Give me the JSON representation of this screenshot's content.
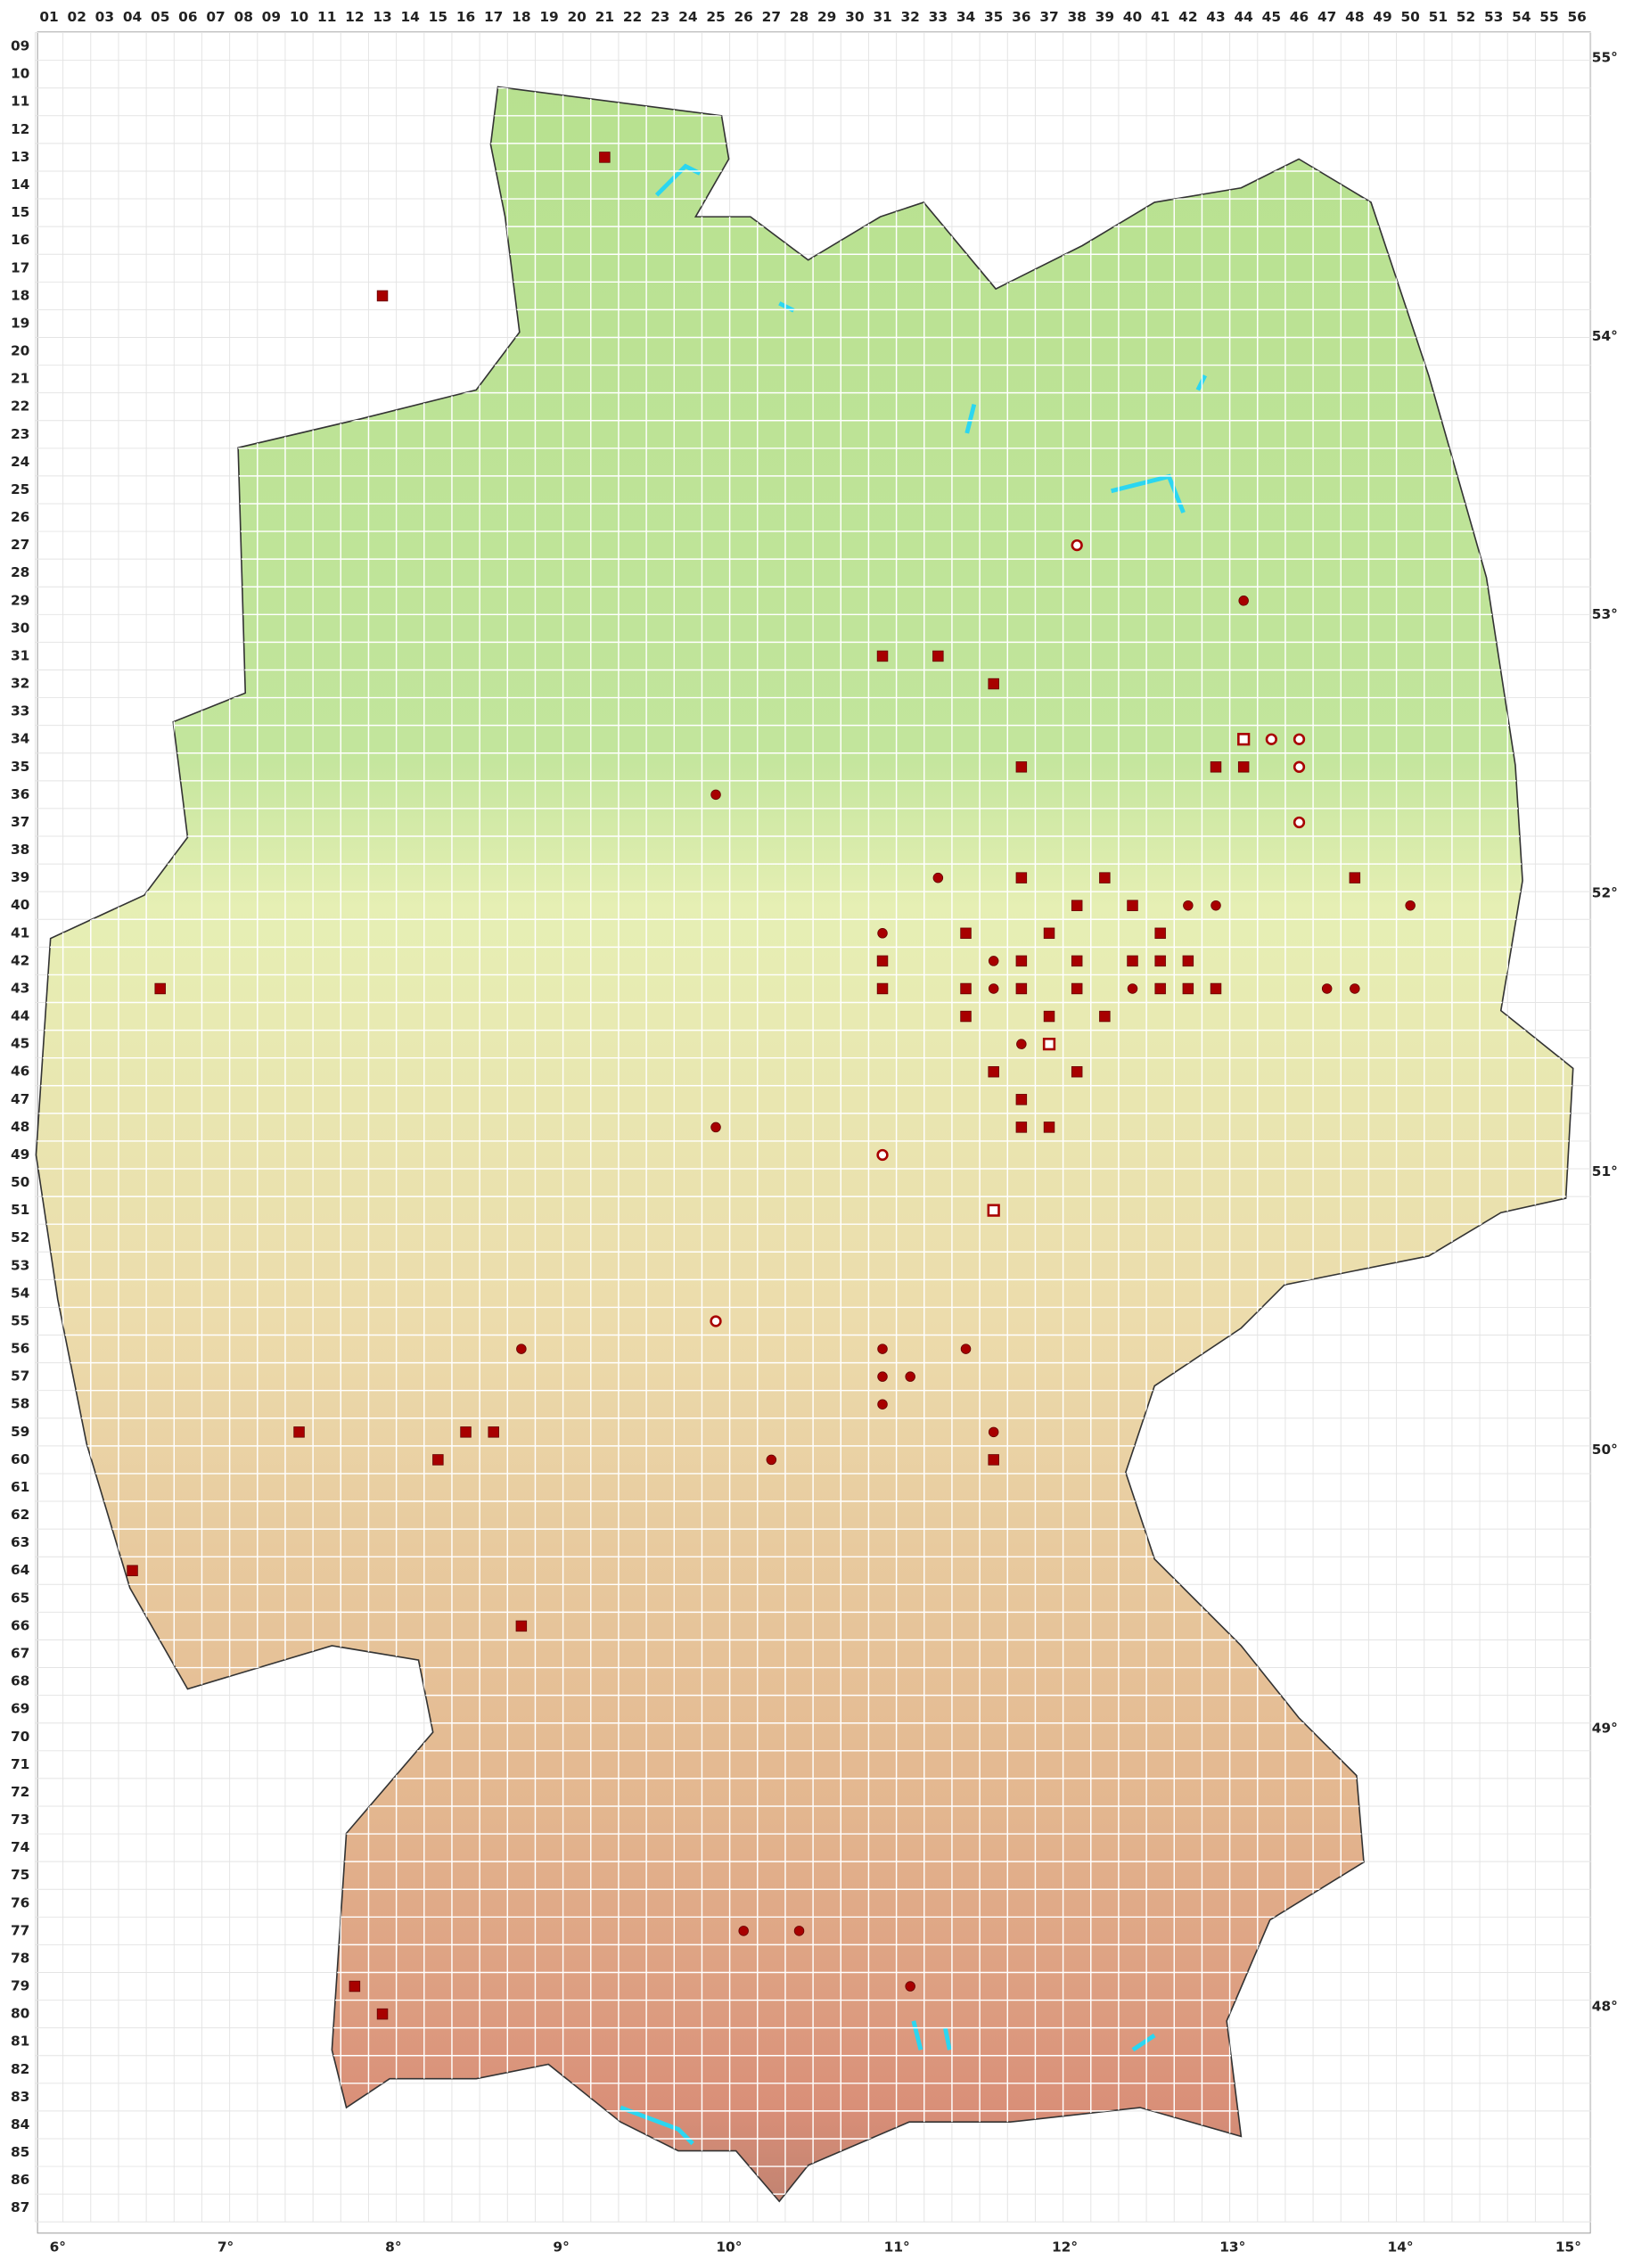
{
  "grid": {
    "columns": [
      "01",
      "02",
      "03",
      "04",
      "05",
      "06",
      "07",
      "08",
      "09",
      "10",
      "11",
      "12",
      "13",
      "14",
      "15",
      "16",
      "17",
      "18",
      "19",
      "20",
      "21",
      "22",
      "23",
      "24",
      "25",
      "26",
      "27",
      "28",
      "29",
      "30",
      "31",
      "32",
      "33",
      "34",
      "35",
      "36",
      "37",
      "38",
      "39",
      "40",
      "41",
      "42",
      "43",
      "44",
      "45",
      "46",
      "47",
      "48",
      "49",
      "50",
      "51",
      "52",
      "53",
      "54",
      "55",
      "56"
    ],
    "rows": [
      "09",
      "10",
      "11",
      "12",
      "13",
      "14",
      "15",
      "16",
      "17",
      "18",
      "19",
      "20",
      "21",
      "22",
      "23",
      "24",
      "25",
      "26",
      "27",
      "28",
      "29",
      "30",
      "31",
      "32",
      "33",
      "34",
      "35",
      "36",
      "37",
      "38",
      "39",
      "40",
      "41",
      "42",
      "43",
      "44",
      "45",
      "46",
      "47",
      "48",
      "49",
      "50",
      "51",
      "52",
      "53",
      "54",
      "55",
      "56",
      "57",
      "58",
      "59",
      "60",
      "61",
      "62",
      "63",
      "64",
      "65",
      "66",
      "67",
      "68",
      "69",
      "70",
      "71",
      "72",
      "73",
      "74",
      "75",
      "76",
      "77",
      "78",
      "79",
      "80",
      "81",
      "82",
      "83",
      "84",
      "85",
      "86",
      "87"
    ]
  },
  "latitudes": [
    "55°",
    "54°",
    "53°",
    "52°",
    "51°",
    "50°",
    "49°",
    "48°"
  ],
  "longitudes": [
    "6°",
    "7°",
    "8°",
    "9°",
    "10°",
    "11°",
    "12°",
    "13°",
    "14°",
    "15°"
  ],
  "markers": [
    {
      "col": 21,
      "row": 13,
      "symbol": "square"
    },
    {
      "col": 13,
      "row": 18,
      "symbol": "square"
    },
    {
      "col": 38,
      "row": 27,
      "symbol": "open-circle"
    },
    {
      "col": 44,
      "row": 29,
      "symbol": "circle"
    },
    {
      "col": 31,
      "row": 31,
      "symbol": "square"
    },
    {
      "col": 33,
      "row": 31,
      "symbol": "square"
    },
    {
      "col": 35,
      "row": 32,
      "symbol": "square"
    },
    {
      "col": 44,
      "row": 34,
      "symbol": "open-square"
    },
    {
      "col": 45,
      "row": 34,
      "symbol": "open-circle"
    },
    {
      "col": 46,
      "row": 34,
      "symbol": "open-circle"
    },
    {
      "col": 36,
      "row": 35,
      "symbol": "square"
    },
    {
      "col": 43,
      "row": 35,
      "symbol": "square"
    },
    {
      "col": 44,
      "row": 35,
      "symbol": "square"
    },
    {
      "col": 46,
      "row": 35,
      "symbol": "open-circle"
    },
    {
      "col": 25,
      "row": 36,
      "symbol": "circle"
    },
    {
      "col": 46,
      "row": 37,
      "symbol": "open-circle"
    },
    {
      "col": 33,
      "row": 39,
      "symbol": "circle"
    },
    {
      "col": 36,
      "row": 39,
      "symbol": "square"
    },
    {
      "col": 39,
      "row": 39,
      "symbol": "square"
    },
    {
      "col": 48,
      "row": 39,
      "symbol": "square"
    },
    {
      "col": 38,
      "row": 40,
      "symbol": "square"
    },
    {
      "col": 40,
      "row": 40,
      "symbol": "square"
    },
    {
      "col": 42,
      "row": 40,
      "symbol": "circle"
    },
    {
      "col": 43,
      "row": 40,
      "symbol": "circle"
    },
    {
      "col": 50,
      "row": 40,
      "symbol": "circle"
    },
    {
      "col": 31,
      "row": 41,
      "symbol": "circle"
    },
    {
      "col": 34,
      "row": 41,
      "symbol": "square"
    },
    {
      "col": 37,
      "row": 41,
      "symbol": "square"
    },
    {
      "col": 41,
      "row": 41,
      "symbol": "square"
    },
    {
      "col": 31,
      "row": 42,
      "symbol": "square"
    },
    {
      "col": 35,
      "row": 42,
      "symbol": "circle"
    },
    {
      "col": 36,
      "row": 42,
      "symbol": "square"
    },
    {
      "col": 38,
      "row": 42,
      "symbol": "square"
    },
    {
      "col": 40,
      "row": 42,
      "symbol": "square"
    },
    {
      "col": 41,
      "row": 42,
      "symbol": "square"
    },
    {
      "col": 42,
      "row": 42,
      "symbol": "square"
    },
    {
      "col": 5,
      "row": 43,
      "symbol": "square"
    },
    {
      "col": 31,
      "row": 43,
      "symbol": "square"
    },
    {
      "col": 34,
      "row": 43,
      "symbol": "square"
    },
    {
      "col": 35,
      "row": 43,
      "symbol": "circle"
    },
    {
      "col": 36,
      "row": 43,
      "symbol": "square"
    },
    {
      "col": 38,
      "row": 43,
      "symbol": "square"
    },
    {
      "col": 40,
      "row": 43,
      "symbol": "circle"
    },
    {
      "col": 41,
      "row": 43,
      "symbol": "square"
    },
    {
      "col": 42,
      "row": 43,
      "symbol": "square"
    },
    {
      "col": 43,
      "row": 43,
      "symbol": "square"
    },
    {
      "col": 47,
      "row": 43,
      "symbol": "circle"
    },
    {
      "col": 48,
      "row": 43,
      "symbol": "circle"
    },
    {
      "col": 34,
      "row": 44,
      "symbol": "square"
    },
    {
      "col": 37,
      "row": 44,
      "symbol": "square"
    },
    {
      "col": 39,
      "row": 44,
      "symbol": "square"
    },
    {
      "col": 36,
      "row": 45,
      "symbol": "circle"
    },
    {
      "col": 37,
      "row": 45,
      "symbol": "open-square"
    },
    {
      "col": 35,
      "row": 46,
      "symbol": "square"
    },
    {
      "col": 38,
      "row": 46,
      "symbol": "square"
    },
    {
      "col": 36,
      "row": 47,
      "symbol": "square"
    },
    {
      "col": 25,
      "row": 48,
      "symbol": "circle"
    },
    {
      "col": 36,
      "row": 48,
      "symbol": "square"
    },
    {
      "col": 37,
      "row": 48,
      "symbol": "square"
    },
    {
      "col": 31,
      "row": 49,
      "symbol": "open-circle"
    },
    {
      "col": 35,
      "row": 51,
      "symbol": "open-square"
    },
    {
      "col": 25,
      "row": 55,
      "symbol": "open-circle"
    },
    {
      "col": 18,
      "row": 56,
      "symbol": "circle"
    },
    {
      "col": 31,
      "row": 56,
      "symbol": "circle"
    },
    {
      "col": 34,
      "row": 56,
      "symbol": "circle"
    },
    {
      "col": 31,
      "row": 57,
      "symbol": "circle"
    },
    {
      "col": 32,
      "row": 57,
      "symbol": "circle"
    },
    {
      "col": 31,
      "row": 58,
      "symbol": "circle"
    },
    {
      "col": 10,
      "row": 59,
      "symbol": "square"
    },
    {
      "col": 16,
      "row": 59,
      "symbol": "square"
    },
    {
      "col": 17,
      "row": 59,
      "symbol": "square"
    },
    {
      "col": 35,
      "row": 59,
      "symbol": "circle"
    },
    {
      "col": 15,
      "row": 60,
      "symbol": "square"
    },
    {
      "col": 27,
      "row": 60,
      "symbol": "circle"
    },
    {
      "col": 35,
      "row": 60,
      "symbol": "square"
    },
    {
      "col": 4,
      "row": 64,
      "symbol": "square"
    },
    {
      "col": 18,
      "row": 66,
      "symbol": "square"
    },
    {
      "col": 26,
      "row": 77,
      "symbol": "circle"
    },
    {
      "col": 28,
      "row": 77,
      "symbol": "circle"
    },
    {
      "col": 12,
      "row": 79,
      "symbol": "square"
    },
    {
      "col": 32,
      "row": 79,
      "symbol": "circle"
    },
    {
      "col": 13,
      "row": 80,
      "symbol": "square"
    }
  ]
}
